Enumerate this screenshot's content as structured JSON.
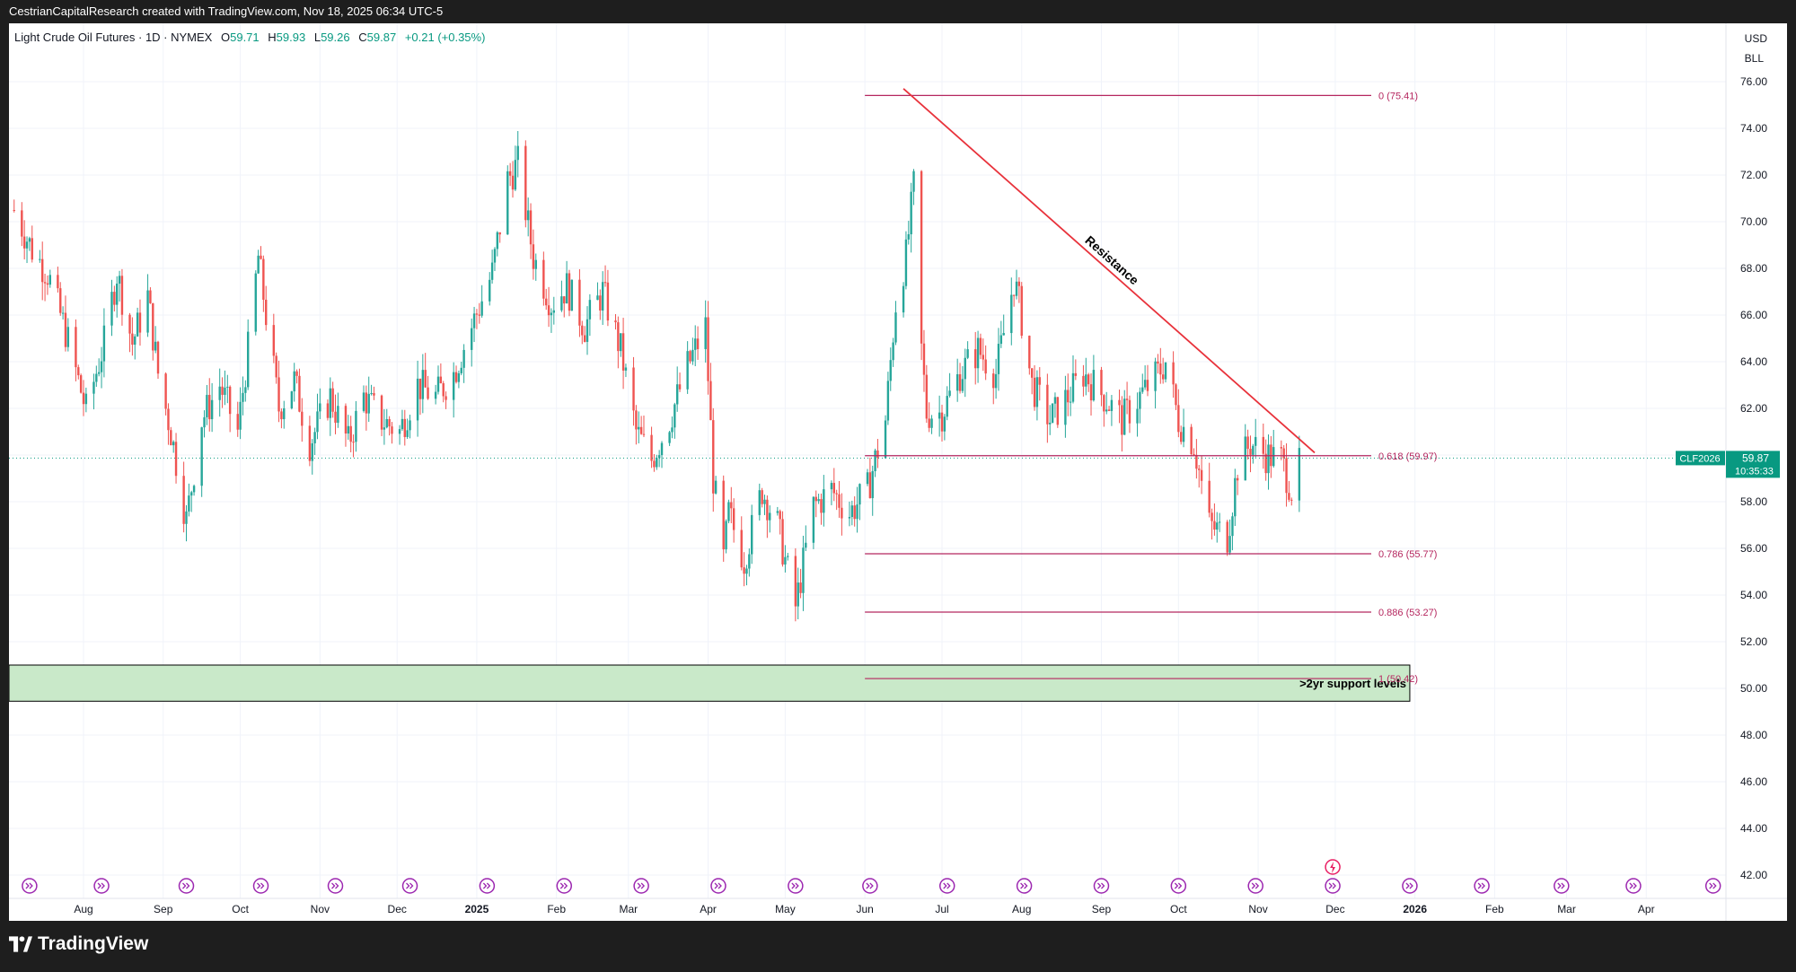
{
  "header": {
    "attribution": "CestrianCapitalResearch created with TradingView.com, Nov 18, 2025 06:34 UTC-5"
  },
  "legend": {
    "symbol": "Light Crude Oil Futures · 1D · NYMEX",
    "open_label": "O",
    "open": "59.71",
    "high_label": "H",
    "high": "59.93",
    "low_label": "L",
    "low": "59.26",
    "close_label": "C",
    "close": "59.87",
    "change": "+0.21 (+0.35%)"
  },
  "units": {
    "currency": "USD",
    "unit": "BLL"
  },
  "price_tag": {
    "ticker": "CLF2026",
    "price": "59.87",
    "countdown": "10:35:33"
  },
  "footer": {
    "brand": "TradingView"
  },
  "colors": {
    "up": "#26a69a",
    "down": "#ef5350",
    "fib": "#b5275f",
    "resistance": "#e8323b",
    "support_fill": "#c9e9c9",
    "accent": "#089981"
  },
  "chart_data": {
    "type": "candlestick",
    "title": "Light Crude Oil Futures · 1D · NYMEX",
    "y_ticks": [
      "76.00",
      "74.00",
      "72.00",
      "70.00",
      "68.00",
      "66.00",
      "64.00",
      "62.00",
      "60.00",
      "58.00",
      "56.00",
      "54.00",
      "52.00",
      "50.00",
      "48.00",
      "46.00",
      "44.00",
      "42.00"
    ],
    "ylim": [
      41,
      78.5
    ],
    "x_ticks": [
      {
        "label": "Aug",
        "date": "2024-08-01"
      },
      {
        "label": "Sep",
        "date": "2024-09-01"
      },
      {
        "label": "Oct",
        "date": "2024-10-01"
      },
      {
        "label": "Nov",
        "date": "2024-11-01"
      },
      {
        "label": "Dec",
        "date": "2024-12-01"
      },
      {
        "label": "2025",
        "date": "2025-01-01",
        "bold": true
      },
      {
        "label": "Feb",
        "date": "2025-02-01"
      },
      {
        "label": "Mar",
        "date": "2025-03-01"
      },
      {
        "label": "Apr",
        "date": "2025-04-01"
      },
      {
        "label": "May",
        "date": "2025-05-01"
      },
      {
        "label": "Jun",
        "date": "2025-06-01"
      },
      {
        "label": "Jul",
        "date": "2025-07-01"
      },
      {
        "label": "Aug",
        "date": "2025-08-01"
      },
      {
        "label": "Sep",
        "date": "2025-09-01"
      },
      {
        "label": "Oct",
        "date": "2025-10-01"
      },
      {
        "label": "Nov",
        "date": "2025-11-01"
      },
      {
        "label": "Dec",
        "date": "2025-12-01"
      },
      {
        "label": "2026",
        "date": "2026-01-01",
        "bold": true
      },
      {
        "label": "Feb",
        "date": "2026-02-01"
      },
      {
        "label": "Mar",
        "date": "2026-03-01"
      },
      {
        "label": "Apr",
        "date": "2026-04-01"
      }
    ],
    "x_range": [
      "2024-07-03",
      "2026-05-02"
    ],
    "price_points": [
      [
        "2024-07-05",
        70.5
      ],
      [
        "2024-07-12",
        68.8
      ],
      [
        "2024-07-18",
        67.8
      ],
      [
        "2024-07-25",
        65.3
      ],
      [
        "2024-08-02",
        61.9
      ],
      [
        "2024-08-09",
        64.8
      ],
      [
        "2024-08-14",
        67.8
      ],
      [
        "2024-08-20",
        64.8
      ],
      [
        "2024-08-26",
        66.8
      ],
      [
        "2024-08-30",
        63.5
      ],
      [
        "2024-09-04",
        61.0
      ],
      [
        "2024-09-10",
        57.2
      ],
      [
        "2024-09-16",
        61.5
      ],
      [
        "2024-09-23",
        63.0
      ],
      [
        "2024-09-30",
        61.0
      ],
      [
        "2024-10-04",
        64.5
      ],
      [
        "2024-10-08",
        68.5
      ],
      [
        "2024-10-11",
        66.0
      ],
      [
        "2024-10-16",
        62.0
      ],
      [
        "2024-10-22",
        63.2
      ],
      [
        "2024-10-28",
        60.5
      ],
      [
        "2024-11-05",
        62.5
      ],
      [
        "2024-11-12",
        60.5
      ],
      [
        "2024-11-18",
        62.5
      ],
      [
        "2024-11-25",
        61.5
      ],
      [
        "2024-12-02",
        61.0
      ],
      [
        "2024-12-09",
        63.0
      ],
      [
        "2024-12-16",
        62.5
      ],
      [
        "2024-12-23",
        63.5
      ],
      [
        "2024-12-30",
        65.5
      ],
      [
        "2025-01-07",
        67.8
      ],
      [
        "2025-01-13",
        71.8
      ],
      [
        "2025-01-17",
        72.5
      ],
      [
        "2025-01-23",
        68.5
      ],
      [
        "2025-01-30",
        66.5
      ],
      [
        "2025-02-05",
        67.2
      ],
      [
        "2025-02-12",
        65.5
      ],
      [
        "2025-02-19",
        67.0
      ],
      [
        "2025-02-26",
        64.5
      ],
      [
        "2025-03-04",
        61.0
      ],
      [
        "2025-03-10",
        59.8
      ],
      [
        "2025-03-17",
        61.5
      ],
      [
        "2025-03-24",
        63.8
      ],
      [
        "2025-03-31",
        65.5
      ],
      [
        "2025-04-03",
        59.0
      ],
      [
        "2025-04-07",
        55.5
      ],
      [
        "2025-04-09",
        57.5
      ],
      [
        "2025-04-15",
        55.5
      ],
      [
        "2025-04-22",
        58.5
      ],
      [
        "2025-04-28",
        57.0
      ],
      [
        "2025-05-05",
        53.5
      ],
      [
        "2025-05-12",
        57.8
      ],
      [
        "2025-05-19",
        58.5
      ],
      [
        "2025-05-26",
        57.5
      ],
      [
        "2025-06-02",
        58.5
      ],
      [
        "2025-06-09",
        61.5
      ],
      [
        "2025-06-13",
        66.5
      ],
      [
        "2025-06-17",
        68.5
      ],
      [
        "2025-06-20",
        71.5
      ],
      [
        "2025-06-23",
        64.5
      ],
      [
        "2025-06-25",
        61.8
      ],
      [
        "2025-07-01",
        61.8
      ],
      [
        "2025-07-08",
        63.5
      ],
      [
        "2025-07-15",
        64.5
      ],
      [
        "2025-07-22",
        63.5
      ],
      [
        "2025-07-29",
        67.5
      ],
      [
        "2025-07-31",
        66.5
      ],
      [
        "2025-08-05",
        63.0
      ],
      [
        "2025-08-12",
        61.5
      ],
      [
        "2025-08-19",
        62.5
      ],
      [
        "2025-08-25",
        63.5
      ],
      [
        "2025-09-02",
        62.5
      ],
      [
        "2025-09-09",
        61.5
      ],
      [
        "2025-09-16",
        62.5
      ],
      [
        "2025-09-23",
        63.5
      ],
      [
        "2025-09-26",
        64.0
      ],
      [
        "2025-10-01",
        61.5
      ],
      [
        "2025-10-07",
        60.5
      ],
      [
        "2025-10-13",
        57.0
      ],
      [
        "2025-10-20",
        56.5
      ],
      [
        "2025-10-24",
        59.5
      ],
      [
        "2025-10-29",
        60.5
      ],
      [
        "2025-11-04",
        60.0
      ],
      [
        "2025-11-10",
        59.8
      ],
      [
        "2025-11-14",
        58.5
      ],
      [
        "2025-11-18",
        59.87
      ]
    ],
    "fib_levels": [
      {
        "label": "0 (75.41)",
        "value": 75.41
      },
      {
        "label": "0.618 (59.97)",
        "value": 59.97
      },
      {
        "label": "0.786 (55.77)",
        "value": 55.77
      },
      {
        "label": "0.886 (53.27)",
        "value": 53.27
      },
      {
        "label": "1 (50.42)",
        "value": 50.42
      }
    ],
    "fib_start": "2025-06-01",
    "fib_end": "2025-12-15",
    "resistance": {
      "label": "Resistance",
      "start": [
        "2025-06-16",
        75.7
      ],
      "end": [
        "2025-11-23",
        60.1
      ]
    },
    "support_zone": {
      "label": ">2yr support levels",
      "top": 51.0,
      "bottom": 49.45,
      "start": "2024-07-03",
      "end": "2025-12-30"
    },
    "last_price": 59.87,
    "event_markers": [
      "2024-07-11",
      "2024-08-08",
      "2024-09-10",
      "2024-10-09",
      "2024-11-07",
      "2024-12-06",
      "2025-01-05",
      "2025-02-04",
      "2025-03-06",
      "2025-04-05",
      "2025-05-05",
      "2025-06-03",
      "2025-07-03",
      "2025-08-02",
      "2025-09-01",
      "2025-10-01",
      "2025-10-31",
      "2025-11-30",
      "2025-12-30",
      "2026-01-27",
      "2026-02-27",
      "2026-03-27",
      "2026-04-27"
    ],
    "flash_marker": "2025-11-30"
  }
}
